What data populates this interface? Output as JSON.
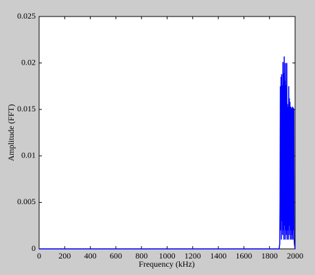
{
  "chart_data": {
    "type": "line",
    "x_label": "Frequency (kHz)",
    "y_label": "Amplitude (FFT)",
    "color": "#0000ff",
    "x": [
      0,
      1000,
      1875,
      1880,
      1882.5,
      1885,
      1887.5,
      1890,
      1892.5,
      1895,
      1897.5,
      1900,
      1902.5,
      1905,
      1907.5,
      1910,
      1912.5,
      1915,
      1917.5,
      1920,
      1922.5,
      1925,
      1927.5,
      1930,
      1932.5,
      1935,
      1937.5,
      1940,
      1942.5,
      1945,
      1947.5,
      1950,
      1952.5,
      1955,
      1957.5,
      1960,
      1962.5,
      1965,
      1967.5,
      1970,
      1972.5,
      1975,
      1977.5,
      1980,
      1982.5,
      1985,
      1987.5,
      1990,
      1992.5,
      1995,
      2000
    ],
    "values": [
      0,
      0,
      0,
      0.0005,
      0.005,
      0.0175,
      0.002,
      0.0185,
      0.001,
      0.0188,
      0.003,
      0.0176,
      0.0015,
      0.0201,
      0.002,
      0.0189,
      0.001,
      0.0207,
      0.0025,
      0.0181,
      0.001,
      0.02,
      0.002,
      0.0176,
      0.0015,
      0.02,
      0.001,
      0.0156,
      0.002,
      0.0153,
      0.001,
      0.0175,
      0.0025,
      0.0162,
      0.0015,
      0.0158,
      0.001,
      0.0153,
      0.002,
      0.0152,
      0.001,
      0.0151,
      0.0015,
      0.0153,
      0.001,
      0.0152,
      0.002,
      0.0151,
      0.001,
      0.0005,
      0
    ],
    "xlim": [
      0,
      2000
    ],
    "xticks": [
      0,
      200,
      400,
      600,
      800,
      1000,
      1200,
      1400,
      1600,
      1800,
      2000
    ],
    "ylim": [
      0,
      0.025
    ],
    "yticks": [
      0,
      0.005,
      0.01,
      0.015,
      0.02,
      0.025
    ]
  }
}
